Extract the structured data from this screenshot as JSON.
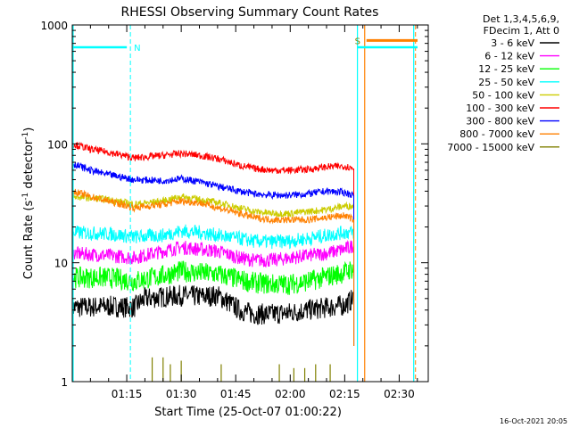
{
  "chart_data": {
    "type": "line",
    "title": "RHESSI Observing Summary Count Rates",
    "xlabel": "Start Time (25-Oct-07 01:00:22)",
    "ylabel_main": "Count Rate (s",
    "ylabel_sup1": "-1",
    "ylabel_mid": " detector",
    "ylabel_sup2": "-1",
    "ylabel_end": ")",
    "y_scale": "log",
    "ylim": [
      1,
      1000
    ],
    "xlim_minutes": [
      0,
      98
    ],
    "x_ticks": [
      {
        "m": 15,
        "label": "01:15"
      },
      {
        "m": 30,
        "label": "01:30"
      },
      {
        "m": 45,
        "label": "01:45"
      },
      {
        "m": 60,
        "label": "02:00"
      },
      {
        "m": 75,
        "label": "02:15"
      },
      {
        "m": 90,
        "label": "02:30"
      }
    ],
    "y_ticks": [
      {
        "v": 1,
        "label": "1"
      },
      {
        "v": 10,
        "label": "10"
      },
      {
        "v": 100,
        "label": "100"
      },
      {
        "v": 1000,
        "label": "1000"
      }
    ],
    "legend_header": [
      "Det 1,3,4,5,6,9,",
      "FDecim 1, Att 0"
    ],
    "series": [
      {
        "name": "3 - 6 keV",
        "color": "#000000",
        "x": [
          0,
          10,
          17,
          20,
          30,
          35,
          40,
          46,
          50,
          55,
          60,
          65,
          70,
          75,
          77.5
        ],
        "values": [
          4.2,
          4.3,
          4.2,
          5.0,
          5.3,
          5.2,
          5.3,
          4.0,
          3.7,
          3.7,
          3.8,
          4.0,
          4.2,
          4.4,
          5.0
        ]
      },
      {
        "name": "6 - 12 keV",
        "color": "#ff00ff",
        "x": [
          0,
          10,
          17,
          25,
          30,
          35,
          40,
          46,
          50,
          55,
          60,
          65,
          70,
          75,
          77.5
        ],
        "values": [
          12,
          11.5,
          11,
          12.5,
          13.5,
          13,
          12.5,
          11,
          10.5,
          10.5,
          11,
          11.5,
          12,
          13,
          14
        ]
      },
      {
        "name": "12 - 25 keV",
        "color": "#00ff00",
        "x": [
          0,
          10,
          17,
          25,
          30,
          35,
          40,
          46,
          50,
          55,
          60,
          65,
          70,
          75,
          77.5
        ],
        "values": [
          7.5,
          7.5,
          7.0,
          7.8,
          8.5,
          8.2,
          8.0,
          7.2,
          6.8,
          6.6,
          6.6,
          7.0,
          7.6,
          8.3,
          9.0
        ]
      },
      {
        "name": "25 - 50 keV",
        "color": "#00ffff",
        "x": [
          0,
          10,
          17,
          25,
          30,
          35,
          40,
          46,
          50,
          55,
          60,
          65,
          70,
          75,
          77.5
        ],
        "values": [
          18,
          17.5,
          16.5,
          17,
          18.5,
          18,
          17,
          16,
          15.2,
          15,
          15.2,
          16,
          17,
          18,
          18
        ]
      },
      {
        "name": "50 - 100 keV",
        "color": "#cccc00",
        "x": [
          0,
          10,
          17,
          25,
          30,
          35,
          40,
          46,
          50,
          55,
          60,
          65,
          70,
          75,
          77.5
        ],
        "values": [
          36,
          34,
          31,
          33,
          36,
          34,
          32,
          29,
          27,
          26,
          26,
          27,
          28,
          30,
          30
        ]
      },
      {
        "name": "100 - 300 keV",
        "color": "#ff0000",
        "x": [
          0,
          5,
          10,
          17,
          25,
          30,
          35,
          40,
          46,
          50,
          55,
          60,
          65,
          70,
          75,
          77.5
        ],
        "values": [
          100,
          90,
          85,
          76,
          80,
          83,
          80,
          75,
          66,
          62,
          60,
          60,
          61,
          64,
          65,
          62
        ]
      },
      {
        "name": "300 - 800 keV",
        "color": "#0000ff",
        "x": [
          0,
          5,
          10,
          17,
          25,
          30,
          35,
          40,
          46,
          50,
          55,
          60,
          65,
          70,
          75,
          77.5
        ],
        "values": [
          68,
          60,
          55,
          50,
          49,
          51,
          48,
          44,
          40,
          38,
          37,
          37,
          38,
          40,
          39,
          37
        ]
      },
      {
        "name": "800 - 7000 keV",
        "color": "#ff8000",
        "x": [
          0,
          5,
          10,
          17,
          25,
          30,
          35,
          40,
          46,
          50,
          55,
          60,
          65,
          70,
          75,
          77.5
        ],
        "values": [
          40,
          36,
          33,
          29,
          31,
          33,
          32,
          29,
          26,
          24,
          23,
          23,
          23,
          24,
          25,
          23
        ]
      },
      {
        "name": "7000 - 15000 keV",
        "color": "#808000",
        "x": [
          22,
          25,
          27,
          30,
          41,
          57,
          61,
          64,
          67,
          71
        ],
        "values": [
          1.6,
          1.6,
          1.4,
          1.5,
          1.4,
          1.4,
          1.3,
          1.3,
          1.4,
          1.4
        ]
      }
    ],
    "flags": [
      {
        "label": "N",
        "color": "#00ffff",
        "x_end": 16,
        "value": 650
      },
      {
        "label": "S",
        "color": "#ff8000",
        "x_start": 79,
        "value": 740
      }
    ],
    "saa_cyan_lines": [
      78.5,
      94
    ],
    "saa_orange_line": 80.5,
    "grid": false
  },
  "footer": {
    "timestamp": "16-Oct-2021 20:05"
  }
}
